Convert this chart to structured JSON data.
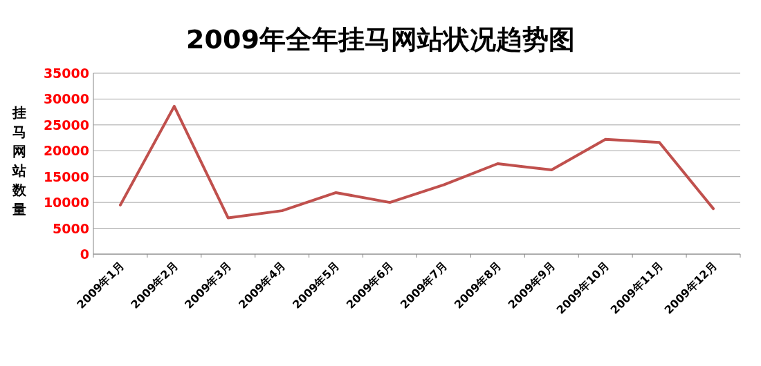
{
  "chart_data": {
    "type": "line",
    "title": "2009年全年挂马网站状况趋势图",
    "ylabel": "挂马网站数量",
    "categories": [
      "2009年1月",
      "2009年2月",
      "2009年3月",
      "2009年4月",
      "2009年5月",
      "2009年6月",
      "2009年7月",
      "2009年8月",
      "2009年9月",
      "2009年10月",
      "2009年11月",
      "2009年12月"
    ],
    "series": [
      {
        "color": "#c0504d",
        "values": [
          9500,
          28600,
          7000,
          8400,
          11900,
          10000,
          13400,
          17500,
          16300,
          22200,
          21600,
          8800
        ]
      }
    ],
    "ylim": [
      0,
      35000
    ],
    "yticks": [
      0,
      5000,
      10000,
      15000,
      20000,
      25000,
      30000,
      35000
    ],
    "grid": "y",
    "marker": "none",
    "line_style": "solid"
  }
}
